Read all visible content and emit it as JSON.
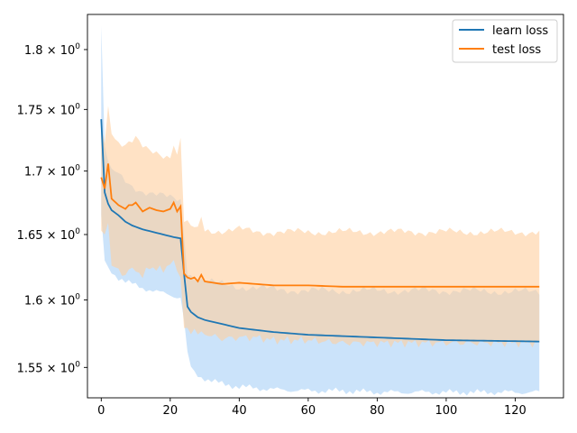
{
  "chart_data": {
    "type": "line",
    "title": "",
    "xlabel": "",
    "ylabel": "",
    "yscale": "log",
    "xlim": [
      -4,
      134
    ],
    "ylim": [
      1.528,
      1.83
    ],
    "x_ticks": [
      0,
      20,
      40,
      60,
      80,
      100,
      120
    ],
    "x_tick_labels": [
      "0",
      "20",
      "40",
      "60",
      "80",
      "100",
      "120"
    ],
    "y_ticks": [
      1.55,
      1.6,
      1.65,
      1.7,
      1.75,
      1.8
    ],
    "y_tick_labels": [
      {
        "mantissa": "1.55",
        "base": "10",
        "exp": "0"
      },
      {
        "mantissa": "1.6",
        "base": "10",
        "exp": "0"
      },
      {
        "mantissa": "1.65",
        "base": "10",
        "exp": "0"
      },
      {
        "mantissa": "1.7",
        "base": "10",
        "exp": "0"
      },
      {
        "mantissa": "1.75",
        "base": "10",
        "exp": "0"
      },
      {
        "mantissa": "1.8",
        "base": "10",
        "exp": "0"
      }
    ],
    "grid": false,
    "legend_position": "top-right",
    "series": [
      {
        "name": "learn loss",
        "color": "#1f77b4",
        "band_color": "#a9d1f7",
        "knots_x": [
          0,
          1,
          2,
          3,
          5,
          7,
          9,
          12,
          15,
          18,
          21,
          23,
          24,
          25,
          26,
          27,
          28,
          30,
          35,
          40,
          50,
          60,
          70,
          80,
          100,
          127
        ],
        "knots_mean": [
          1.742,
          1.683,
          1.674,
          1.669,
          1.665,
          1.66,
          1.657,
          1.654,
          1.652,
          1.65,
          1.648,
          1.647,
          1.62,
          1.595,
          1.591,
          1.589,
          1.587,
          1.585,
          1.582,
          1.579,
          1.576,
          1.574,
          1.573,
          1.572,
          1.57,
          1.569
        ],
        "knots_upper": [
          1.82,
          1.72,
          1.708,
          1.702,
          1.697,
          1.692,
          1.688,
          1.684,
          1.682,
          1.68,
          1.678,
          1.677,
          1.65,
          1.622,
          1.619,
          1.617,
          1.616,
          1.614,
          1.612,
          1.61,
          1.608,
          1.607,
          1.607,
          1.607,
          1.607,
          1.606
        ],
        "knots_lower": [
          1.665,
          1.63,
          1.625,
          1.62,
          1.617,
          1.614,
          1.612,
          1.609,
          1.607,
          1.605,
          1.603,
          1.602,
          1.585,
          1.56,
          1.55,
          1.546,
          1.544,
          1.542,
          1.538,
          1.536,
          1.534,
          1.533,
          1.533,
          1.532,
          1.532,
          1.532
        ]
      },
      {
        "name": "test loss",
        "color": "#ff7f0e",
        "band_color": "#ffcf9f",
        "knots_x": [
          0,
          1,
          2,
          3,
          5,
          7,
          8,
          9,
          10,
          12,
          14,
          16,
          18,
          20,
          21,
          22,
          23,
          24,
          25,
          26,
          27,
          28,
          29,
          30,
          35,
          40,
          45,
          50,
          60,
          70,
          80,
          100,
          127
        ],
        "knots_mean": [
          1.695,
          1.686,
          1.706,
          1.678,
          1.673,
          1.67,
          1.673,
          1.673,
          1.675,
          1.668,
          1.671,
          1.669,
          1.668,
          1.67,
          1.675,
          1.668,
          1.672,
          1.62,
          1.617,
          1.616,
          1.617,
          1.614,
          1.619,
          1.614,
          1.612,
          1.613,
          1.612,
          1.611,
          1.611,
          1.61,
          1.61,
          1.61,
          1.61
        ],
        "knots_upper": [
          1.737,
          1.722,
          1.753,
          1.73,
          1.724,
          1.721,
          1.723,
          1.724,
          1.726,
          1.719,
          1.716,
          1.715,
          1.713,
          1.712,
          1.723,
          1.712,
          1.727,
          1.66,
          1.658,
          1.656,
          1.655,
          1.653,
          1.664,
          1.653,
          1.653,
          1.654,
          1.652,
          1.652,
          1.652,
          1.652,
          1.652,
          1.652,
          1.652
        ]
      }
    ]
  }
}
